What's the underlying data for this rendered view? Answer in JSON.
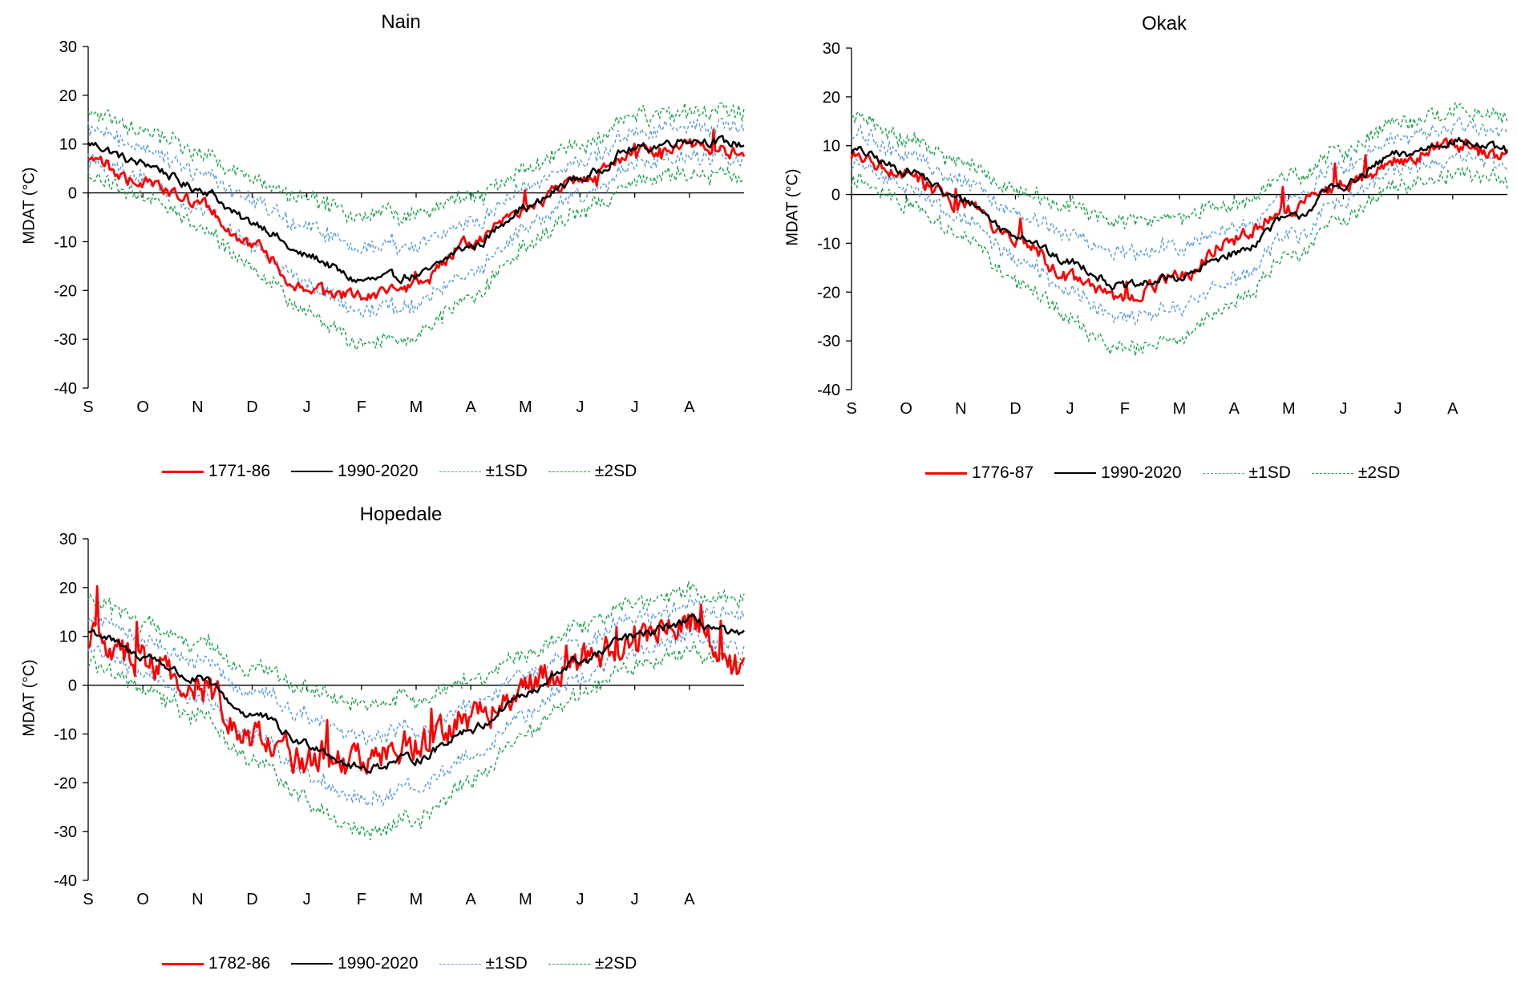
{
  "chart_data": [
    {
      "type": "line",
      "title": "Nain",
      "ylabel": "MDAT (°C)",
      "xlabel": "",
      "ylim": [
        -40,
        30
      ],
      "yticks": [
        "30",
        "20",
        "10",
        "0",
        "-10",
        "-20",
        "-30",
        "-40"
      ],
      "categories": [
        "S",
        "O",
        "N",
        "D",
        "J",
        "F",
        "M",
        "A",
        "M",
        "J",
        "J",
        "A"
      ],
      "legend": [
        "1771-86",
        "1990-2020",
        "±1SD",
        "±2SD"
      ],
      "historical_label": "1771-86",
      "historical_noise": 1.6,
      "normal_monthly": [
        10,
        6,
        1,
        -6,
        -13,
        -18,
        -17,
        -11,
        -3,
        3,
        9,
        11,
        10
      ],
      "historical_monthly": [
        7,
        2,
        -2,
        -11,
        -20,
        -21,
        -19,
        -10,
        -3,
        3,
        8,
        10,
        8
      ],
      "colors": {
        "historical": "#ff0000",
        "normal": "#000000",
        "sd1": "#5b9bd5",
        "sd2": "#1aa34a"
      }
    },
    {
      "type": "line",
      "title": "Okak",
      "ylabel": "MDAT (°C)",
      "xlabel": "",
      "ylim": [
        -40,
        30
      ],
      "yticks": [
        "30",
        "20",
        "10",
        "0",
        "-10",
        "-20",
        "-30",
        "-40"
      ],
      "categories": [
        "S",
        "O",
        "N",
        "D",
        "J",
        "F",
        "M",
        "A",
        "M",
        "J",
        "J",
        "A"
      ],
      "legend": [
        "1776-87",
        "1990-2020",
        "±1SD",
        "±2SD"
      ],
      "historical_label": "1776-87",
      "historical_noise": 1.8,
      "normal_monthly": [
        9,
        5,
        -1,
        -8,
        -14,
        -19,
        -17,
        -12,
        -5,
        2,
        8,
        11,
        9
      ],
      "historical_monthly": [
        8,
        4,
        -2,
        -9,
        -17,
        -21,
        -17,
        -9,
        -3,
        2,
        7,
        10,
        8
      ],
      "colors": {
        "historical": "#ff0000",
        "normal": "#000000",
        "sd1": "#5b9bd5",
        "sd2": "#1aa34a"
      }
    },
    {
      "type": "line",
      "title": "Hopedale",
      "ylabel": "MDAT (°C)",
      "xlabel": "",
      "ylim": [
        -40,
        30
      ],
      "yticks": [
        "30",
        "20",
        "10",
        "0",
        "-10",
        "-20",
        "-30",
        "-40"
      ],
      "categories": [
        "S",
        "O",
        "N",
        "D",
        "J",
        "F",
        "M",
        "A",
        "M",
        "J",
        "J",
        "A"
      ],
      "legend": [
        "1782-86",
        "1990-2020",
        "±1SD",
        "±2SD"
      ],
      "historical_label": "1782-86",
      "historical_noise": 4.0,
      "normal_monthly": [
        11,
        6,
        1,
        -6,
        -12,
        -17,
        -15,
        -9,
        -2,
        5,
        10,
        13,
        10
      ],
      "historical_monthly": [
        10,
        5,
        0,
        -10,
        -16,
        -16,
        -12,
        -7,
        0,
        5,
        10,
        13,
        3
      ],
      "colors": {
        "historical": "#ff0000",
        "normal": "#000000",
        "sd1": "#5b9bd5",
        "sd2": "#1aa34a"
      }
    }
  ]
}
